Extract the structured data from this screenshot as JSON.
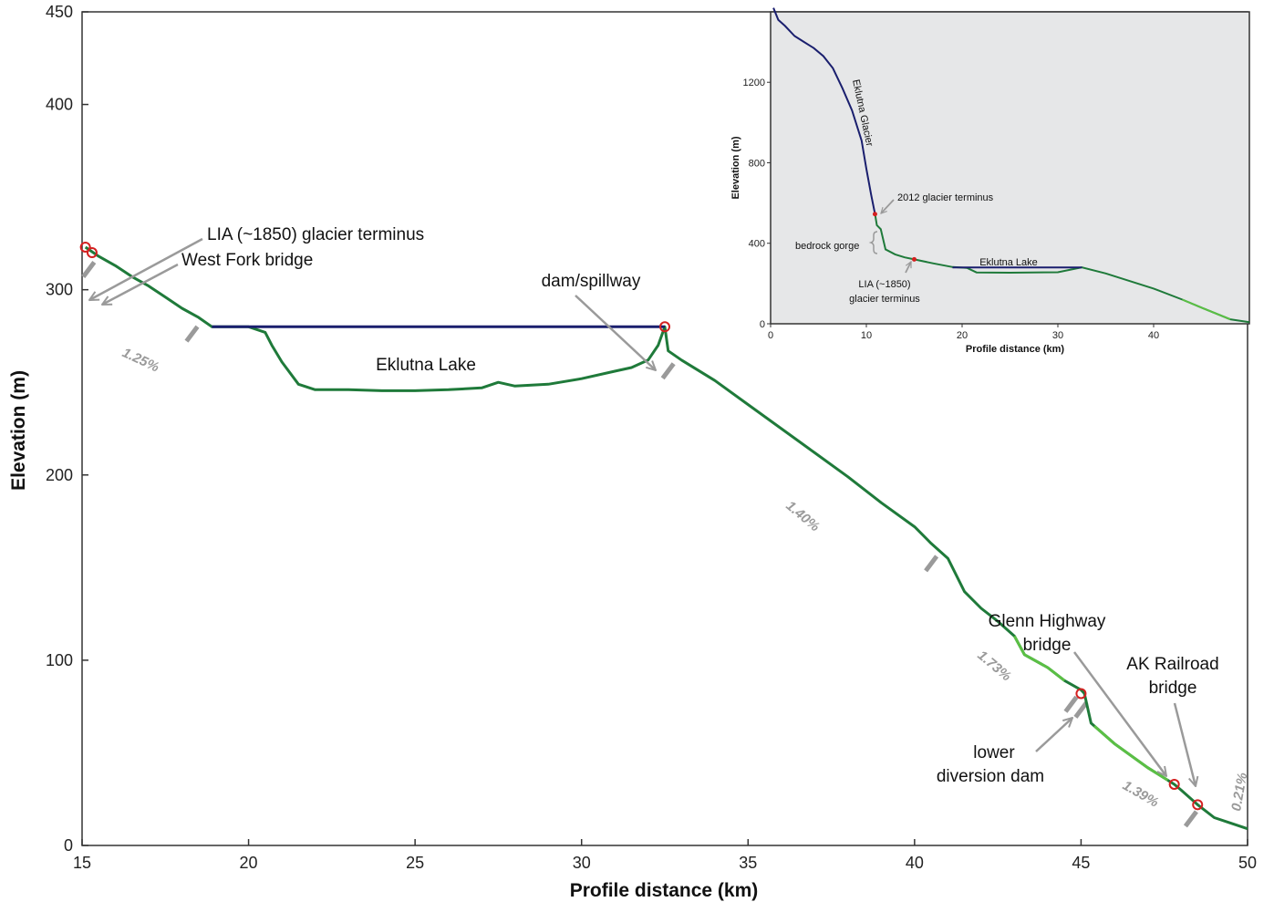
{
  "chart_data": [
    {
      "type": "line",
      "title": "",
      "xlabel": "Profile distance (km)",
      "ylabel": "Elevation (m)",
      "xlim": [
        15,
        50
      ],
      "ylim": [
        0,
        450
      ],
      "xticks": [
        "15",
        "20",
        "25",
        "30",
        "35",
        "40",
        "45",
        "50"
      ],
      "yticks": [
        "0",
        "100",
        "200",
        "300",
        "400",
        "450"
      ],
      "grid": false,
      "colors": {
        "river": "#1f7a3a",
        "river_light": "#5bbf45",
        "lake": "#1a1f6e",
        "marker": "#d42020",
        "arrow": "#9a9a9a",
        "gradient": "#9a9a9a"
      },
      "series": [
        {
          "name": "river-bed",
          "x": [
            15.1,
            15.5,
            16.0,
            16.5,
            17.0,
            17.5,
            18.0,
            18.5,
            18.9,
            20.0,
            20.5,
            20.7,
            21.0,
            21.5,
            22.0,
            23.0,
            24.0,
            25.0,
            26.0,
            27.0,
            27.5,
            28.0,
            29.0,
            30.0,
            31.0,
            31.5,
            32.0,
            32.3,
            32.5,
            32.6,
            33.0,
            34.0,
            35.0,
            36.0,
            37.0,
            38.0,
            39.0,
            40.0,
            40.5,
            41.0,
            41.5,
            42.0,
            42.5,
            43.0,
            43.3,
            44.0,
            44.5,
            45.0,
            45.1,
            45.3,
            46.0,
            47.0,
            47.8,
            48.0,
            48.5,
            49.0,
            49.5,
            50.0
          ],
          "y": [
            323,
            318,
            313,
            307,
            302,
            296,
            290,
            285,
            280,
            280,
            277,
            270,
            261,
            249,
            246,
            246,
            245.5,
            245.5,
            246,
            247,
            250,
            248,
            249,
            252,
            256,
            258,
            262,
            270,
            280,
            267,
            262,
            251,
            238,
            225,
            212,
            199,
            185,
            172,
            163,
            155,
            137,
            128,
            121,
            113,
            103,
            96,
            89,
            84,
            82,
            66,
            55,
            42,
            33,
            30,
            22,
            15,
            12,
            9
          ]
        },
        {
          "name": "Eklutna Lake",
          "x": [
            18.9,
            32.5
          ],
          "y": [
            280,
            280
          ]
        }
      ],
      "light_segments": [
        [
          43.0,
          44.5
        ],
        [
          45.4,
          47.6
        ]
      ],
      "break_ticks_x": [
        15.2,
        18.3,
        32.6,
        40.5,
        44.7,
        45.0,
        48.3
      ],
      "markers": [
        {
          "x": 15.1,
          "y": 323
        },
        {
          "x": 15.3,
          "y": 320
        },
        {
          "x": 32.5,
          "y": 280
        },
        {
          "x": 45.0,
          "y": 82
        },
        {
          "x": 47.8,
          "y": 33
        },
        {
          "x": 48.5,
          "y": 22
        }
      ],
      "annotations": {
        "lia": "LIA (~1850) glacier terminus",
        "west_fork": "West Fork bridge",
        "dam": "dam/spillway",
        "lake": "Eklutna Lake",
        "glenn_1": "Glenn Highway",
        "glenn_2": "bridge",
        "ak_1": "AK Railroad",
        "ak_2": "bridge",
        "lower_1": "lower",
        "lower_2": "diversion dam"
      },
      "gradients": {
        "g1": "1.25%",
        "g2": "1.40%",
        "g3": "1.73%",
        "g4": "1.39%",
        "g5": "0.21%"
      }
    },
    {
      "type": "line",
      "title": "",
      "xlabel": "Profile distance (km)",
      "ylabel": "Elevation (m)",
      "xlim": [
        0,
        50
      ],
      "ylim": [
        0,
        1550
      ],
      "xticks": [
        "0",
        "10",
        "20",
        "30",
        "40"
      ],
      "yticks": [
        "0",
        "400",
        "800",
        "1200"
      ],
      "grid": false,
      "background": "#e6e7e8",
      "series": [
        {
          "name": "Eklutna Glacier",
          "x": [
            0.3,
            0.8,
            1.5,
            2.5,
            3.5,
            4.5,
            5.5,
            6.5,
            7.5,
            8.5,
            9.5,
            10.0,
            10.5,
            10.9
          ],
          "y": [
            1570,
            1510,
            1480,
            1430,
            1400,
            1370,
            1330,
            1270,
            1170,
            1060,
            910,
            770,
            640,
            545
          ]
        },
        {
          "name": "river",
          "x": [
            10.9,
            11.1,
            11.5,
            12.0,
            13.0,
            14.0,
            15.0,
            17.0,
            19.0,
            20.5,
            21.5,
            25.0,
            30.0,
            32.5,
            35.0,
            40.0,
            43.0,
            45.0,
            48.0,
            50.0
          ],
          "y": [
            545,
            490,
            470,
            370,
            345,
            330,
            320,
            300,
            282,
            278,
            255,
            254,
            256,
            280,
            250,
            175,
            120,
            80,
            22,
            8
          ]
        },
        {
          "name": "Eklutna Lake",
          "x": [
            19.0,
            32.5
          ],
          "y": [
            280,
            280
          ]
        }
      ],
      "light_segment": [
        43.0,
        48.0
      ],
      "markers": [
        {
          "x": 10.9,
          "y": 545
        },
        {
          "x": 15.0,
          "y": 320
        }
      ],
      "annotations": {
        "glacier": "Eklutna Glacier",
        "terminus_2012": "2012 glacier terminus",
        "gorge": "bedrock gorge",
        "lake": "Eklutna Lake",
        "lia_1": "LIA (~1850)",
        "lia_2": "glacier terminus"
      }
    }
  ]
}
